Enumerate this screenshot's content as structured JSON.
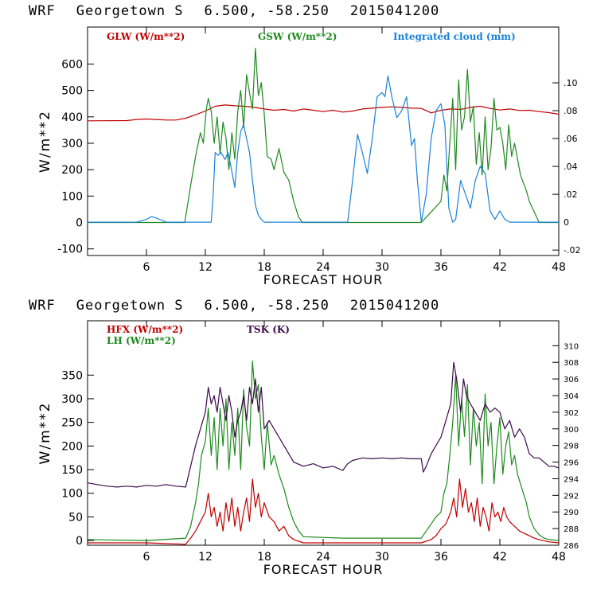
{
  "chart_data": [
    {
      "type": "line",
      "title": {
        "model": "WRF",
        "site": "Georgetown S",
        "coords": "6.500, -58.250",
        "run": "2015041200"
      },
      "xlabel": "FORECAST HOUR",
      "ylabel": "W/m**2",
      "xlim": [
        0,
        48
      ],
      "ylim": [
        -125,
        740
      ],
      "y2lim": [
        -0.0239,
        0.14
      ],
      "xticks": [
        6,
        12,
        18,
        24,
        30,
        36,
        42,
        48
      ],
      "yticks": [
        -100,
        0,
        100,
        200,
        300,
        400,
        500,
        600
      ],
      "y2ticks": [
        -0.02,
        0,
        0.02,
        0.04,
        0.06,
        0.08,
        0.1
      ],
      "y2ticklabels": [
        "-.02",
        "0",
        ".02",
        ".04",
        ".06",
        ".08",
        ".10"
      ],
      "legend": [
        {
          "label": "GLW (W/m**2)",
          "color": "#c00000"
        },
        {
          "label": "GSW (W/m**2)",
          "color": "#1e8a1e"
        },
        {
          "label": "Integrated cloud (mm)",
          "color": "#1a82d6"
        }
      ],
      "series": [
        {
          "name": "GLW",
          "axis": "left",
          "color": "#c00000",
          "x": [
            0,
            4,
            5,
            6,
            7,
            8,
            9,
            10,
            11,
            12,
            13,
            14,
            15,
            16,
            17,
            18,
            19,
            20,
            21,
            22,
            23,
            24,
            25,
            26,
            27,
            28,
            29,
            30,
            31,
            32,
            33,
            34,
            35,
            36,
            37,
            38,
            39,
            40,
            41,
            42,
            43,
            44,
            45,
            46,
            47,
            48
          ],
          "y": [
            385,
            386,
            390,
            392,
            390,
            388,
            388,
            395,
            408,
            422,
            440,
            445,
            442,
            440,
            436,
            430,
            425,
            428,
            422,
            430,
            425,
            420,
            425,
            418,
            422,
            430,
            433,
            436,
            438,
            436,
            433,
            432,
            415,
            425,
            430,
            428,
            436,
            440,
            432,
            426,
            430,
            424,
            425,
            420,
            416,
            410
          ]
        },
        {
          "name": "GSW",
          "axis": "left",
          "color": "#1e8a1e",
          "x": [
            0,
            9.9,
            10.5,
            11,
            11.5,
            11.8,
            12.1,
            12.3,
            12.6,
            12.9,
            13.2,
            13.5,
            13.8,
            14.1,
            14.4,
            14.7,
            15,
            15.3,
            15.6,
            15.9,
            16.2,
            16.5,
            16.8,
            17.1,
            17.4,
            17.7,
            18,
            18.3,
            18.7,
            19,
            19.5,
            20,
            20.5,
            21,
            21.5,
            21.9,
            34,
            35,
            35.5,
            36,
            36.3,
            36.6,
            36.9,
            37.2,
            37.5,
            37.8,
            38.1,
            38.4,
            38.7,
            39,
            39.3,
            39.6,
            39.9,
            40.2,
            40.5,
            40.8,
            41.1,
            41.4,
            41.7,
            42,
            42.3,
            42.6,
            42.9,
            43.2,
            43.5,
            43.8,
            44.1,
            44.4,
            44.7,
            45,
            45.5,
            46,
            48
          ],
          "y": [
            0,
            0,
            140,
            250,
            340,
            300,
            430,
            470,
            420,
            300,
            400,
            260,
            380,
            320,
            200,
            340,
            240,
            420,
            500,
            360,
            560,
            490,
            430,
            660,
            480,
            530,
            410,
            250,
            240,
            200,
            280,
            190,
            160,
            80,
            20,
            0,
            0,
            40,
            60,
            80,
            180,
            120,
            300,
            470,
            200,
            540,
            350,
            400,
            580,
            380,
            440,
            220,
            340,
            180,
            400,
            200,
            280,
            470,
            350,
            360,
            300,
            200,
            370,
            250,
            300,
            240,
            180,
            150,
            120,
            80,
            40,
            0,
            0
          ]
        },
        {
          "name": "Integrated cloud",
          "axis": "right",
          "color": "#1a82d6",
          "x": [
            0,
            5,
            6,
            6.5,
            7,
            7.5,
            8,
            9,
            12.6,
            12.8,
            13,
            13.3,
            13.6,
            14,
            14.3,
            14.6,
            15,
            15.3,
            15.6,
            15.9,
            16.2,
            16.5,
            16.8,
            17.1,
            17.4,
            17.7,
            18,
            18.5,
            19,
            20,
            26.5,
            27,
            27.5,
            28,
            28.5,
            29,
            29.5,
            30,
            30.3,
            30.6,
            31,
            31.5,
            32,
            32.5,
            33,
            33.3,
            33.6,
            34,
            34.5,
            35,
            35.5,
            36,
            36.4,
            36.8,
            37.2,
            37.5,
            38,
            38.5,
            39,
            39.5,
            40,
            40.5,
            41,
            41.5,
            42,
            42.5,
            43,
            48
          ],
          "y": [
            0,
            0,
            0.002,
            0.004,
            0.003,
            0.0015,
            0,
            0,
            0,
            0.02,
            0.05,
            0.048,
            0.05,
            0.045,
            0.05,
            0.04,
            0.025,
            0.05,
            0.065,
            0.07,
            0.06,
            0.05,
            0.03,
            0.012,
            0.005,
            0.002,
            0,
            0,
            0,
            0,
            0,
            0.03,
            0.063,
            0.05,
            0.035,
            0.06,
            0.09,
            0.093,
            0.09,
            0.105,
            0.09,
            0.075,
            0.08,
            0.09,
            0.055,
            0.06,
            0.03,
            0,
            0.02,
            0.06,
            0.08,
            0.085,
            0.07,
            0.01,
            0,
            0.002,
            0.03,
            0.02,
            0.01,
            0.03,
            0.04,
            0.035,
            0.008,
            0.002,
            0.008,
            0.002,
            0,
            0
          ]
        }
      ]
    },
    {
      "type": "line",
      "title": {
        "model": "WRF",
        "site": "Georgetown S",
        "coords": "6.500, -58.250",
        "run": "2015041200"
      },
      "xlabel": "FORECAST HOUR",
      "ylabel": "W/m**2",
      "xlim": [
        0,
        48
      ],
      "ylim": [
        -10,
        465
      ],
      "y2lim": [
        286,
        313
      ],
      "xticks": [
        6,
        12,
        18,
        24,
        30,
        36,
        42,
        48
      ],
      "yticks": [
        0,
        50,
        100,
        150,
        200,
        250,
        300,
        350
      ],
      "y2ticks": [
        286,
        288,
        290,
        292,
        294,
        296,
        298,
        300,
        302,
        304,
        306,
        308,
        310
      ],
      "y2ticklabels": [
        "286",
        "288",
        "290",
        "292",
        "294",
        "296",
        "298",
        "300",
        "302",
        "304",
        "306",
        "308",
        "310"
      ],
      "legend": [
        {
          "label": "HFX (W/m**2)",
          "color": "#c00000"
        },
        {
          "label": "LH  (W/m**2)",
          "color": "#1e8a1e"
        },
        {
          "label": "TSK (K)",
          "color": "#3d0a4a"
        }
      ],
      "series": [
        {
          "name": "HFX",
          "axis": "left",
          "color": "#c00000",
          "x": [
            0,
            6,
            10,
            10.5,
            11,
            11.5,
            12,
            12.3,
            12.6,
            12.9,
            13.2,
            13.5,
            13.8,
            14.1,
            14.4,
            14.7,
            15,
            15.3,
            15.6,
            15.9,
            16.2,
            16.5,
            16.8,
            17.1,
            17.4,
            17.7,
            18,
            18.5,
            19,
            19.5,
            20,
            20.5,
            21,
            22,
            34,
            35,
            35.5,
            36,
            36.5,
            37,
            37.3,
            37.6,
            37.9,
            38.2,
            38.5,
            38.8,
            39.1,
            39.4,
            39.7,
            40,
            40.3,
            40.6,
            40.9,
            41.2,
            41.5,
            41.8,
            42.1,
            42.4,
            42.7,
            43,
            43.5,
            44,
            44.5,
            45,
            45.5,
            46,
            47,
            48
          ],
          "y": [
            -5,
            -5,
            -8,
            5,
            20,
            40,
            60,
            100,
            50,
            70,
            30,
            60,
            20,
            80,
            40,
            90,
            30,
            70,
            20,
            60,
            90,
            40,
            130,
            70,
            100,
            50,
            80,
            50,
            40,
            20,
            30,
            10,
            2,
            -5,
            -5,
            2,
            10,
            25,
            35,
            60,
            90,
            50,
            130,
            70,
            110,
            60,
            80,
            40,
            90,
            30,
            70,
            50,
            20,
            80,
            50,
            60,
            40,
            70,
            50,
            40,
            30,
            20,
            15,
            10,
            5,
            2,
            -3,
            -5
          ]
        },
        {
          "name": "LH",
          "axis": "left",
          "color": "#1e8a1e",
          "x": [
            0,
            6,
            10,
            10.5,
            11,
            11.3,
            11.6,
            12,
            12.3,
            12.6,
            12.9,
            13.2,
            13.5,
            13.8,
            14.1,
            14.4,
            14.7,
            15,
            15.3,
            15.6,
            15.9,
            16.2,
            16.5,
            16.8,
            17.1,
            17.4,
            17.7,
            18,
            18.3,
            18.7,
            19,
            19.5,
            20,
            20.5,
            21,
            21.5,
            22,
            26,
            30,
            34,
            34.5,
            35,
            35.5,
            36,
            36.3,
            36.6,
            36.9,
            37.2,
            37.5,
            37.8,
            38.1,
            38.4,
            38.7,
            39,
            39.3,
            39.6,
            39.9,
            40.2,
            40.5,
            40.8,
            41.1,
            41.4,
            41.7,
            42,
            42.3,
            42.6,
            42.9,
            43.2,
            43.5,
            43.8,
            44.1,
            44.4,
            44.7,
            45,
            45.5,
            46,
            46.5,
            47,
            48
          ],
          "y": [
            2,
            0,
            5,
            30,
            80,
            120,
            180,
            210,
            280,
            180,
            260,
            150,
            280,
            200,
            300,
            150,
            250,
            180,
            280,
            150,
            320,
            240,
            200,
            380,
            300,
            330,
            220,
            150,
            250,
            160,
            180,
            140,
            110,
            70,
            40,
            20,
            8,
            5,
            5,
            5,
            20,
            35,
            50,
            60,
            100,
            120,
            180,
            250,
            350,
            200,
            300,
            220,
            330,
            160,
            280,
            200,
            250,
            120,
            310,
            200,
            250,
            120,
            200,
            260,
            140,
            200,
            230,
            160,
            180,
            140,
            120,
            100,
            80,
            50,
            25,
            12,
            5,
            2,
            0
          ]
        },
        {
          "name": "TSK",
          "axis": "right",
          "color": "#3d0a4a",
          "x": [
            0,
            1,
            2,
            3,
            4,
            5,
            6,
            7,
            8,
            9,
            10,
            10.5,
            11,
            11.5,
            12,
            12.3,
            12.6,
            12.9,
            13.2,
            13.5,
            13.8,
            14.1,
            14.4,
            14.7,
            15,
            15.3,
            15.6,
            15.9,
            16.2,
            16.5,
            16.8,
            17.1,
            17.4,
            17.7,
            18,
            18.5,
            19,
            19.5,
            20,
            20.5,
            21,
            22,
            23,
            24,
            25,
            26,
            26.5,
            27,
            28,
            29,
            30,
            31,
            32,
            33,
            34,
            34.2,
            34.5,
            35,
            35.5,
            36,
            36.5,
            37,
            37.3,
            37.6,
            38,
            38.3,
            38.6,
            39,
            39.5,
            40,
            40.5,
            41,
            41.5,
            42,
            42.5,
            43,
            43.5,
            44,
            44.5,
            45,
            45.5,
            46,
            46.5,
            47,
            47.5,
            48
          ],
          "y": [
            293.5,
            293.3,
            293.1,
            293.0,
            293.1,
            293.0,
            293.2,
            293.1,
            293.3,
            293.1,
            293.0,
            295.5,
            298,
            300,
            302,
            305,
            303,
            304,
            302,
            305,
            303,
            301,
            304,
            302,
            299,
            301,
            302,
            304,
            301,
            305,
            303,
            306,
            302,
            305,
            300,
            301,
            300,
            299,
            298,
            297,
            296,
            295.5,
            295.8,
            295.3,
            295.5,
            295.0,
            295.8,
            296.2,
            296.5,
            296.4,
            296.5,
            296.4,
            296.5,
            296.4,
            296.4,
            294.8,
            295.5,
            297,
            298,
            299,
            301,
            303,
            308,
            306,
            302,
            306,
            304,
            303,
            302,
            301,
            303,
            302,
            302.5,
            302,
            300,
            301,
            299,
            300,
            299,
            297,
            296.5,
            296.5,
            296,
            295.5,
            295.5,
            295.3
          ]
        }
      ]
    }
  ]
}
